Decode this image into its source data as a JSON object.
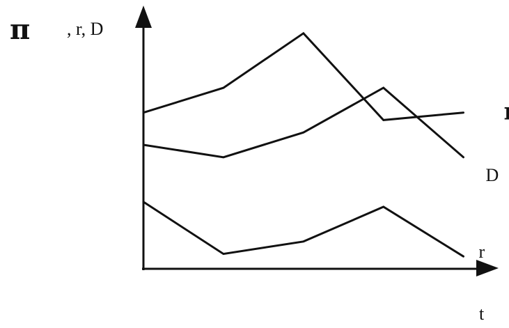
{
  "chart_data": {
    "type": "line",
    "ylabel": {
      "symbol": "π",
      "rest": ", r, D"
    },
    "xlabel": "t",
    "grid": false,
    "legend": "none",
    "x": [
      0,
      1,
      2,
      3,
      4
    ],
    "xlim": [
      0,
      4.3
    ],
    "ylim": [
      0,
      10
    ],
    "series": [
      {
        "name": "π",
        "values": [
          6.3,
          7.3,
          9.5,
          6.0,
          6.3
        ],
        "label_pos": "end"
      },
      {
        "name": "D",
        "values": [
          5.0,
          4.5,
          5.5,
          7.3,
          4.5
        ],
        "label_pos": "below-end"
      },
      {
        "name": "r",
        "values": [
          2.7,
          0.6,
          1.1,
          2.5,
          0.5
        ],
        "label_pos": "end"
      }
    ],
    "line_color": "#111111"
  }
}
